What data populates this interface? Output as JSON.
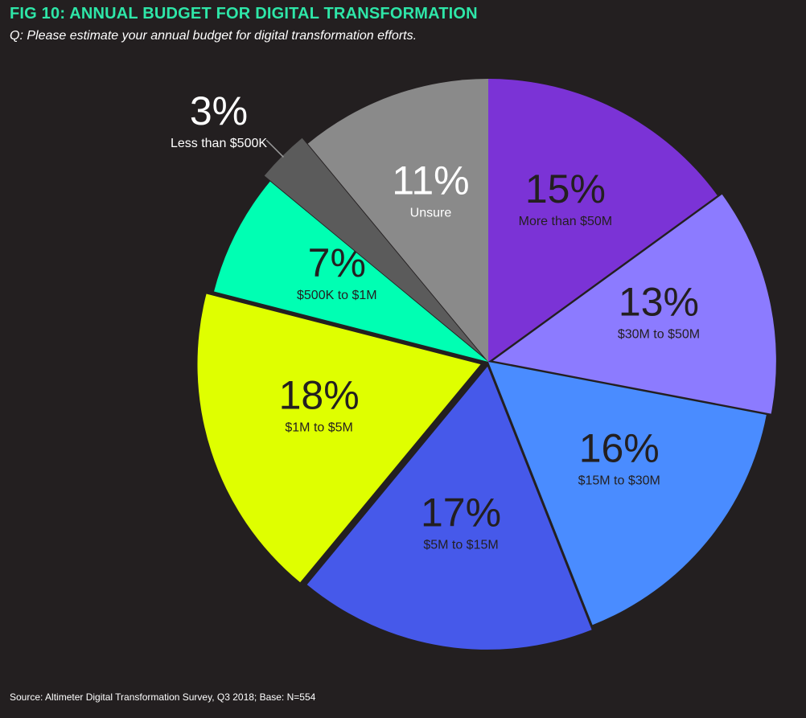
{
  "header": {
    "title": "FIG 10: ANNUAL BUDGET FOR DIGITAL TRANSFORMATION",
    "subtitle": "Q: Please estimate your annual budget for digital transformation efforts."
  },
  "footer": {
    "source": "Source: Altimeter Digital Transformation Survey, Q3 2018; Base: N=554"
  },
  "chart_data": {
    "type": "pie",
    "title": "FIG 10: ANNUAL BUDGET FOR DIGITAL TRANSFORMATION",
    "subtitle": "Q: Please estimate your annual budget for digital transformation efforts.",
    "slices": [
      {
        "label": "More than $50M",
        "value": 15,
        "value_label": "15%",
        "color": "#7b33d6",
        "text_color": "#231f20"
      },
      {
        "label": "$30M to $50M",
        "value": 13,
        "value_label": "13%",
        "color": "#8c7bff",
        "text_color": "#231f20"
      },
      {
        "label": "$15M to $30M",
        "value": 16,
        "value_label": "16%",
        "color": "#4a8cff",
        "text_color": "#231f20"
      },
      {
        "label": "$5M to $15M",
        "value": 17,
        "value_label": "17%",
        "color": "#4659ea",
        "text_color": "#231f20"
      },
      {
        "label": "$1M to $5M",
        "value": 18,
        "value_label": "18%",
        "color": "#dfff00",
        "text_color": "#231f20"
      },
      {
        "label": "$500K to $1M",
        "value": 7,
        "value_label": "7%",
        "color": "#00ffb3",
        "text_color": "#231f20"
      },
      {
        "label": "Less than $500K",
        "value": 3,
        "value_label": "3%",
        "color": "#5b5b5b",
        "text_color": "#ffffff",
        "label_outside": true
      },
      {
        "label": "Unsure",
        "value": 11,
        "value_label": "11%",
        "color": "#8a8a8a",
        "text_color": "#ffffff"
      }
    ]
  }
}
